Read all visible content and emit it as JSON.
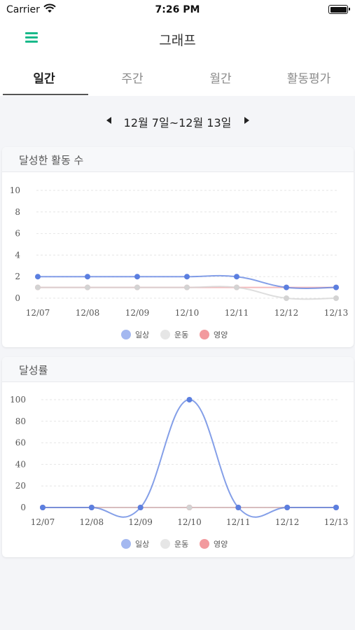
{
  "status_bar": {
    "carrier": "Carrier",
    "time": "7:26 PM"
  },
  "header": {
    "title": "그래프",
    "menu_icon": "hamburger-menu-icon"
  },
  "tabs": [
    {
      "label": "일간",
      "active": true
    },
    {
      "label": "주간",
      "active": false
    },
    {
      "label": "월간",
      "active": false
    },
    {
      "label": "활동평가",
      "active": false
    }
  ],
  "date_nav": {
    "label": "12월 7일~12월 13일"
  },
  "colors": {
    "accent": "#19b98a",
    "daily": "#5b7fe0",
    "exercise": "#cfcfcf",
    "nutrition": "#e0525a"
  },
  "chart_data": [
    {
      "type": "line",
      "title": "달성한 활동 수",
      "categories": [
        "12/07",
        "12/08",
        "12/09",
        "12/10",
        "12/11",
        "12/12",
        "12/13"
      ],
      "yticks": [
        0,
        2,
        4,
        6,
        8,
        10
      ],
      "ylim": [
        0,
        10
      ],
      "series": [
        {
          "name": "일상",
          "color": "#5b7fe0",
          "legend_color": "#a4b8f0",
          "values": [
            2,
            2,
            2,
            2,
            2,
            1,
            1
          ]
        },
        {
          "name": "운동",
          "color": "#d3d3d3",
          "legend_color": "#e6e6e6",
          "values": [
            1,
            1,
            1,
            1,
            1,
            0,
            0
          ]
        },
        {
          "name": "영양",
          "color": "#f0a3a6",
          "legend_color": "#f29a9e",
          "values": [
            1,
            1,
            1,
            1,
            1,
            1,
            1
          ]
        }
      ],
      "legend": "bottom"
    },
    {
      "type": "line",
      "title": "달성률",
      "categories": [
        "12/07",
        "12/08",
        "12/09",
        "12/10",
        "12/11",
        "12/12",
        "12/13"
      ],
      "yticks": [
        0,
        20,
        40,
        60,
        80,
        100
      ],
      "ylim": [
        0,
        100
      ],
      "series": [
        {
          "name": "일상",
          "color": "#5b7fe0",
          "legend_color": "#a4b8f0",
          "values": [
            0,
            0,
            0,
            100,
            0,
            0,
            0
          ]
        },
        {
          "name": "운동",
          "color": "#d3d3d3",
          "legend_color": "#e6e6e6",
          "values": [
            0,
            0,
            0,
            0,
            0,
            0,
            0
          ]
        },
        {
          "name": "영양",
          "color": "#e0525a",
          "legend_color": "#f29a9e",
          "values": [
            0,
            0,
            0,
            0,
            0,
            0,
            0
          ]
        }
      ],
      "legend": "bottom"
    }
  ]
}
